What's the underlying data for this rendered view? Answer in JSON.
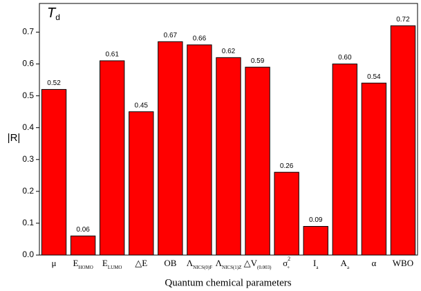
{
  "chart_data": {
    "type": "bar",
    "title": "T",
    "title_subscript": "d",
    "xlabel": "Quantum chemical parameters",
    "ylabel": "|R|",
    "categories": [
      "μ",
      "E",
      "E",
      "△E",
      "OB",
      "Λ",
      "Λ",
      "△V",
      "σ",
      "I",
      "A",
      "α",
      "WBO"
    ],
    "category_subscripts": [
      null,
      "HOMO",
      "LUMO",
      null,
      null,
      "NICS(0)F",
      "NICS(1)Z",
      "(0.003)",
      "+",
      "a",
      "a",
      null,
      null
    ],
    "category_superscripts": [
      null,
      null,
      null,
      null,
      null,
      null,
      null,
      null,
      "2",
      null,
      null,
      null,
      null
    ],
    "values": [
      0.52,
      0.06,
      0.61,
      0.45,
      0.67,
      0.66,
      0.62,
      0.59,
      0.26,
      0.09,
      0.6,
      0.54,
      0.72
    ],
    "value_labels": [
      "0.52",
      "0.06",
      "0.61",
      "0.45",
      "0.67",
      "0.66",
      "0.62",
      "0.59",
      "0.26",
      "0.09",
      "0.60",
      "0.54",
      "0.72"
    ],
    "color": "#ff0000",
    "ylim": [
      0,
      0.79
    ],
    "yticks": [
      {
        "value": 0,
        "label": "0.0"
      },
      {
        "value": 0.1,
        "label": "0.1"
      },
      {
        "value": 0.2,
        "label": "0.2"
      },
      {
        "value": 0.3,
        "label": "0.3"
      },
      {
        "value": 0.4,
        "label": "0.4"
      },
      {
        "value": 0.5,
        "label": "0.5"
      },
      {
        "value": 0.6,
        "label": "0.6"
      },
      {
        "value": 0.7,
        "label": "0.7"
      }
    ],
    "grid": false
  }
}
